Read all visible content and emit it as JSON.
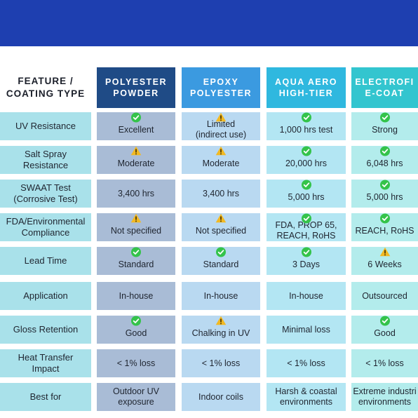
{
  "header": {
    "feature_line1": "FEATURE /",
    "feature_line2": "COATING TYPE",
    "columns": [
      {
        "line1": "POLYESTER",
        "line2": "POWDER",
        "color": "#1f4b86"
      },
      {
        "line1": "EPOXY",
        "line2": "POLYESTER",
        "color": "#3b9ae0"
      },
      {
        "line1": "AQUA AERO",
        "line2": "HIGH-TIER",
        "color": "#2fb8df"
      },
      {
        "line1": "ELECTROFI",
        "line2": "E-COAT",
        "color": "#33c5cf"
      }
    ]
  },
  "colors": {
    "banner": "#1e3fb0",
    "feature_bg": "#a9e1ea",
    "col_bg": [
      "#a9bcd6",
      "#b9d9f1",
      "#b3e6f3",
      "#b3ecec"
    ],
    "check": "#34c34a",
    "warning": "#f2b922"
  },
  "rows": [
    {
      "feature": [
        "UV Resistance"
      ],
      "cells": [
        {
          "icon": "check-icon",
          "text": [
            "Excellent"
          ]
        },
        {
          "icon": "warning-icon",
          "text": [
            "Limited",
            "(indirect use)"
          ]
        },
        {
          "icon": "check-icon",
          "text": [
            "1,000 hrs test"
          ]
        },
        {
          "icon": "check-icon",
          "text": [
            "Strong"
          ]
        }
      ]
    },
    {
      "feature": [
        "Salt Spray",
        "Resistance"
      ],
      "cells": [
        {
          "icon": "warning-icon",
          "text": [
            "Moderate"
          ]
        },
        {
          "icon": "warning-icon",
          "text": [
            "Moderate"
          ]
        },
        {
          "icon": "check-icon",
          "text": [
            "20,000 hrs"
          ]
        },
        {
          "icon": "check-icon",
          "text": [
            "6,048 hrs"
          ]
        }
      ]
    },
    {
      "feature": [
        "SWAAT Test",
        "(Corrosive Test)"
      ],
      "cells": [
        {
          "icon": "",
          "text": [
            "3,400 hrs"
          ]
        },
        {
          "icon": "",
          "text": [
            "3,400 hrs"
          ]
        },
        {
          "icon": "check-icon",
          "text": [
            "5,000 hrs"
          ]
        },
        {
          "icon": "check-icon",
          "text": [
            "5,000 hrs"
          ]
        }
      ]
    },
    {
      "feature": [
        "FDA/Environmental",
        "Compliance"
      ],
      "cells": [
        {
          "icon": "warning-icon",
          "text": [
            "Not specified"
          ]
        },
        {
          "icon": "warning-icon",
          "text": [
            "Not specified"
          ]
        },
        {
          "icon": "check-icon",
          "text": [
            "FDA, PROP 65,",
            "REACH, RoHS"
          ]
        },
        {
          "icon": "check-icon",
          "text": [
            "REACH, RoHS"
          ]
        }
      ]
    },
    {
      "feature": [
        "Lead Time"
      ],
      "cells": [
        {
          "icon": "check-icon",
          "text": [
            "Standard"
          ]
        },
        {
          "icon": "check-icon",
          "text": [
            "Standard"
          ]
        },
        {
          "icon": "check-icon",
          "text": [
            "3 Days"
          ]
        },
        {
          "icon": "warning-icon",
          "text": [
            "6 Weeks"
          ]
        }
      ]
    },
    {
      "feature": [
        "Application"
      ],
      "cells": [
        {
          "icon": "",
          "text": [
            "In-house"
          ]
        },
        {
          "icon": "",
          "text": [
            "In-house"
          ]
        },
        {
          "icon": "",
          "text": [
            "In-house"
          ]
        },
        {
          "icon": "",
          "text": [
            "Outsourced"
          ]
        }
      ]
    },
    {
      "feature": [
        "Gloss Retention"
      ],
      "cells": [
        {
          "icon": "check-icon",
          "text": [
            "Good"
          ]
        },
        {
          "icon": "warning-icon",
          "text": [
            "Chalking in UV"
          ]
        },
        {
          "icon": "",
          "text": [
            "Minimal loss"
          ]
        },
        {
          "icon": "check-icon",
          "text": [
            "Good"
          ]
        }
      ]
    },
    {
      "feature": [
        "Heat Transfer",
        "Impact"
      ],
      "cells": [
        {
          "icon": "",
          "text": [
            "< 1% loss"
          ]
        },
        {
          "icon": "",
          "text": [
            "< 1% loss"
          ]
        },
        {
          "icon": "",
          "text": [
            "< 1% loss"
          ]
        },
        {
          "icon": "",
          "text": [
            "< 1% loss"
          ]
        }
      ]
    },
    {
      "feature": [
        "Best for"
      ],
      "cells": [
        {
          "icon": "",
          "text": [
            "Outdoor UV",
            "exposure"
          ]
        },
        {
          "icon": "",
          "text": [
            "Indoor coils"
          ]
        },
        {
          "icon": "",
          "text": [
            "Harsh & coastal",
            "environments"
          ]
        },
        {
          "icon": "",
          "text": [
            "Extreme industri",
            "environments"
          ]
        }
      ]
    }
  ]
}
